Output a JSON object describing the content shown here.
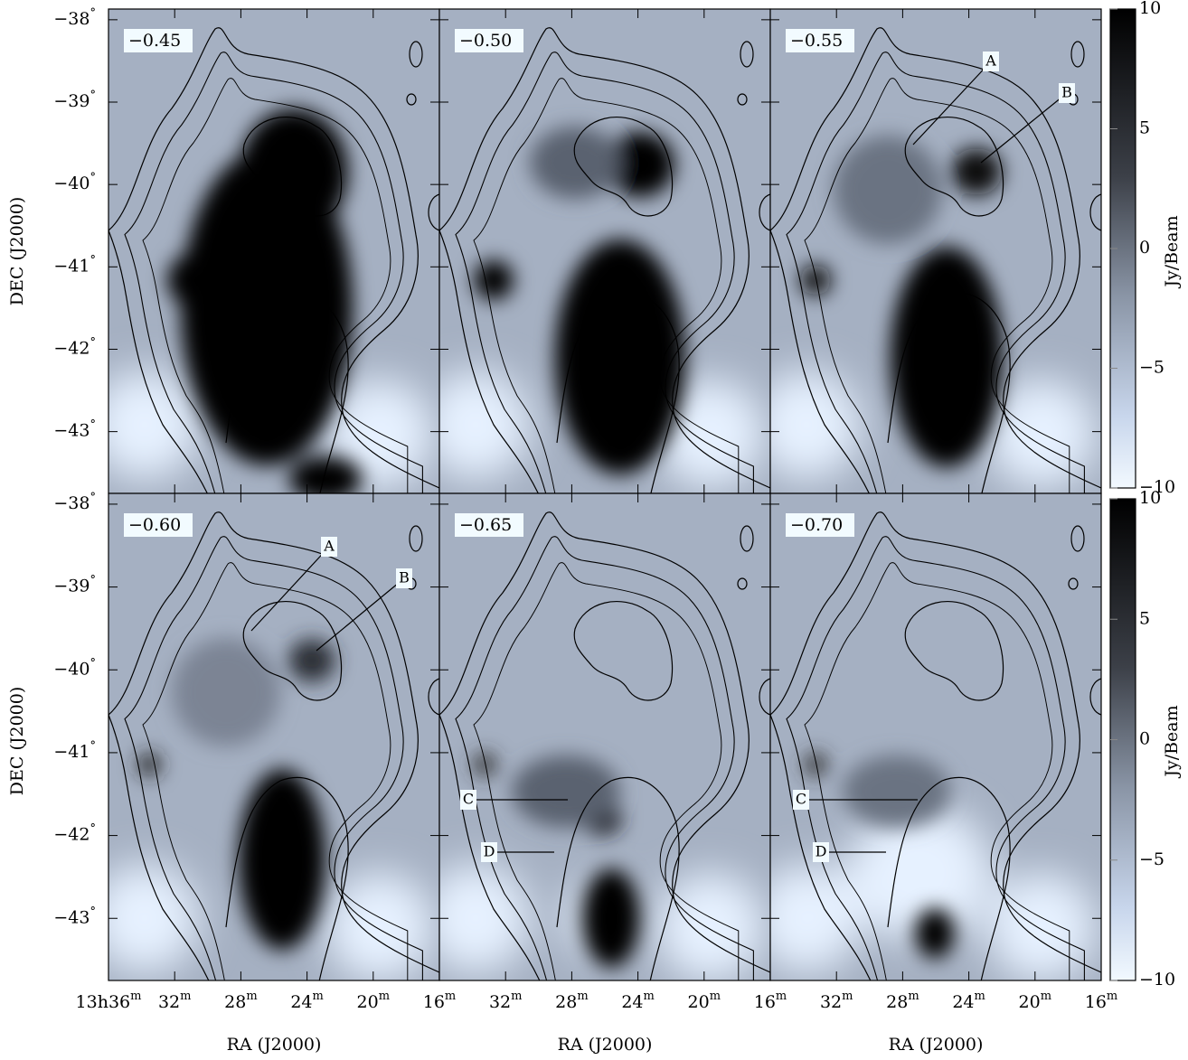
{
  "chart_data": {
    "type": "image",
    "x_label": "RA (J2000)",
    "y_label": "DEC (J2000)",
    "xlim": [
      36,
      16
    ],
    "xticks": [
      {
        "value": 36,
        "label": "13h36"
      },
      32,
      28,
      24,
      20,
      16
    ],
    "x_tick_unit": "m",
    "ylim": [
      -43.75,
      -37.87
    ],
    "yticks": [
      {
        "value": -38,
        "label": "−38"
      },
      {
        "value": -39,
        "label": "−39"
      },
      {
        "value": -40,
        "label": "−40"
      },
      {
        "value": -41,
        "label": "−41"
      },
      {
        "value": -42,
        "label": "−42"
      },
      {
        "value": -43,
        "label": "−43"
      }
    ],
    "y_tick_unit": "°",
    "panels": [
      {
        "label": "−0.45"
      },
      {
        "label": "−0.50"
      },
      {
        "label": "−0.55",
        "annotations": [
          "A",
          "B"
        ]
      },
      {
        "label": "−0.60",
        "annotations": [
          "A",
          "B"
        ]
      },
      {
        "label": "−0.65",
        "annotations": [
          "C",
          "D"
        ]
      },
      {
        "label": "−0.70",
        "annotations": [
          "C",
          "D"
        ]
      }
    ],
    "colorbar": {
      "label": "Jy/Beam",
      "lim": [
        -10,
        10
      ],
      "ticks": [
        10,
        5,
        0,
        {
          "value": -5,
          "label": "−5"
        },
        {
          "value": -10,
          "label": "−10"
        }
      ]
    }
  }
}
